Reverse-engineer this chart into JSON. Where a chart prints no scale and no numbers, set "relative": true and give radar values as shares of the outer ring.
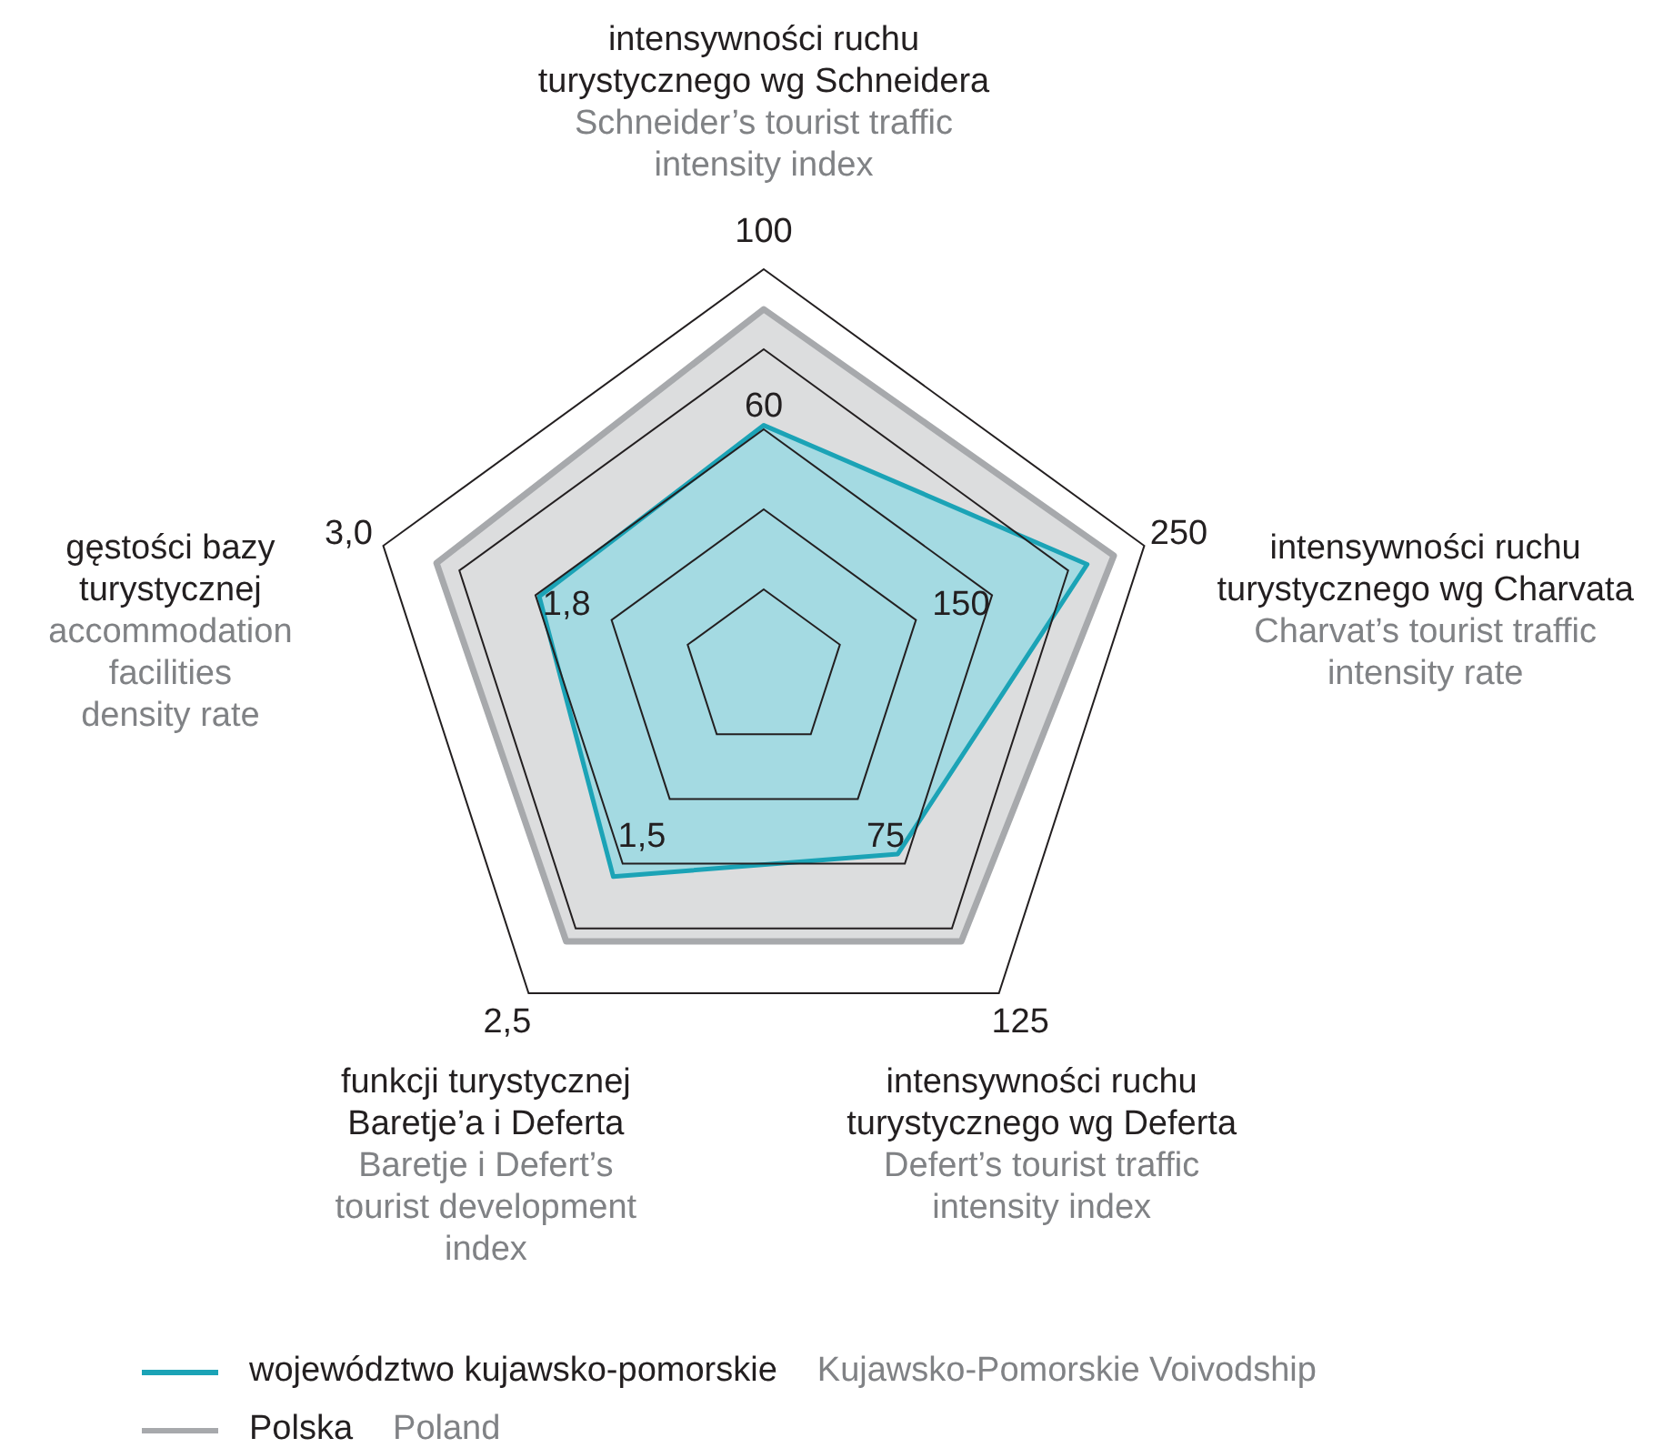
{
  "chart_data": {
    "type": "radar",
    "relative": true,
    "grid": true,
    "legend": "bottom",
    "marker": "none",
    "categories": [
      "intensywności ruchu\nturystycznego wg Schneidera\n\nSchneider’s tourist traffic\nintensity index",
      "intensywności ruchu\nturystycznego wg Charvata\n\nCharvat’s tourist traffic\nintensity rate",
      "intensywności ruchu\nturystycznego wg Deferta\n\nDefert’s tourist traffic\nintensity index",
      "funkcji turystycznej\nBaretje’a i Deferta\n\nBaretje i Defert’s\ntourist development\nindex",
      "gęstości bazy\nturystycznej\n\naccommodation\nfacilities\ndensity rate"
    ],
    "series": [
      {
        "name": "województwo kujawsko-pomorskie\n\nKujawsko-Pomorskie Voivodship",
        "color": "#1ba3b6",
        "values": [
          0.61,
          0.85,
          0.57,
          0.64,
          0.59
        ]
      },
      {
        "name": "Polska\n\nPoland",
        "color": "#a7a9ac",
        "values": [
          0.9,
          0.92,
          0.84,
          0.84,
          0.86
        ]
      }
    ],
    "annotations": [
      "100",
      "60",
      "250",
      "150",
      "125",
      "75",
      "2,5",
      "1,5",
      "3,0",
      "1,8"
    ]
  }
}
